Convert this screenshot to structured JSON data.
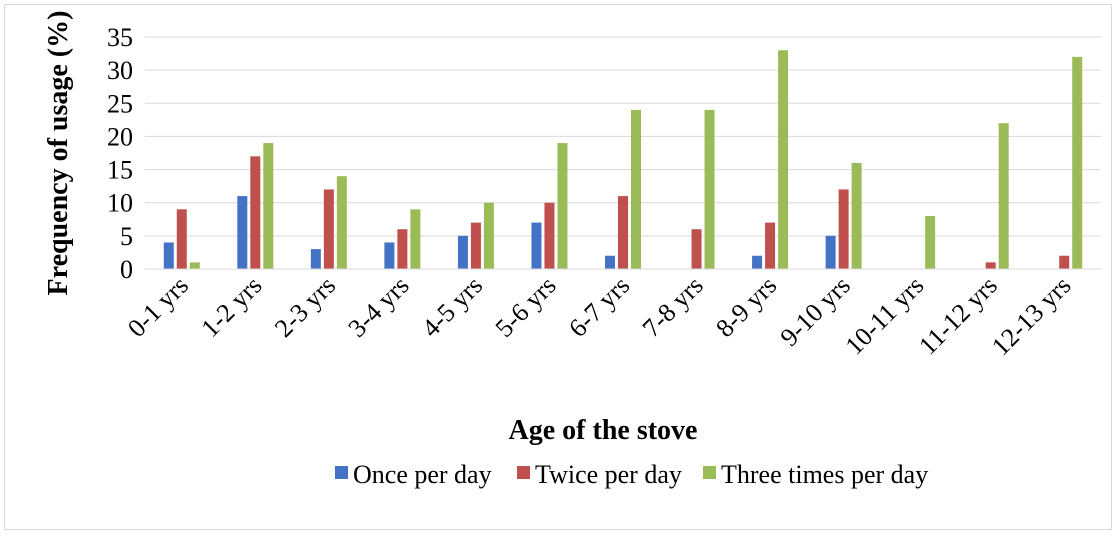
{
  "chart_data": {
    "type": "bar",
    "title": "",
    "xlabel": "Age of the stove",
    "ylabel": "Frequency of usage (%)",
    "ylim": [
      0,
      35
    ],
    "yticks": [
      0,
      5,
      10,
      15,
      20,
      25,
      30,
      35
    ],
    "grid": true,
    "legend_position": "bottom",
    "categories": [
      "0-1 yrs",
      "1-2 yrs",
      "2-3 yrs",
      "3-4 yrs",
      "4-5 yrs",
      "5-6 yrs",
      "6-7 yrs",
      "7-8 yrs",
      "8-9 yrs",
      "9-10 yrs",
      "10-11 yrs",
      "11-12 yrs",
      "12-13 yrs"
    ],
    "series": [
      {
        "name": "Once per day",
        "color": "#4472c4",
        "values": [
          4,
          11,
          3,
          4,
          5,
          7,
          2,
          0,
          2,
          5,
          0,
          0,
          0
        ]
      },
      {
        "name": "Twice per day",
        "color": "#c0504d",
        "values": [
          9,
          17,
          12,
          6,
          7,
          10,
          11,
          6,
          7,
          12,
          0,
          1,
          2
        ]
      },
      {
        "name": "Three times per day",
        "color": "#9bbb59",
        "values": [
          1,
          19,
          14,
          9,
          10,
          19,
          24,
          24,
          33,
          16,
          8,
          22,
          32
        ]
      }
    ]
  }
}
